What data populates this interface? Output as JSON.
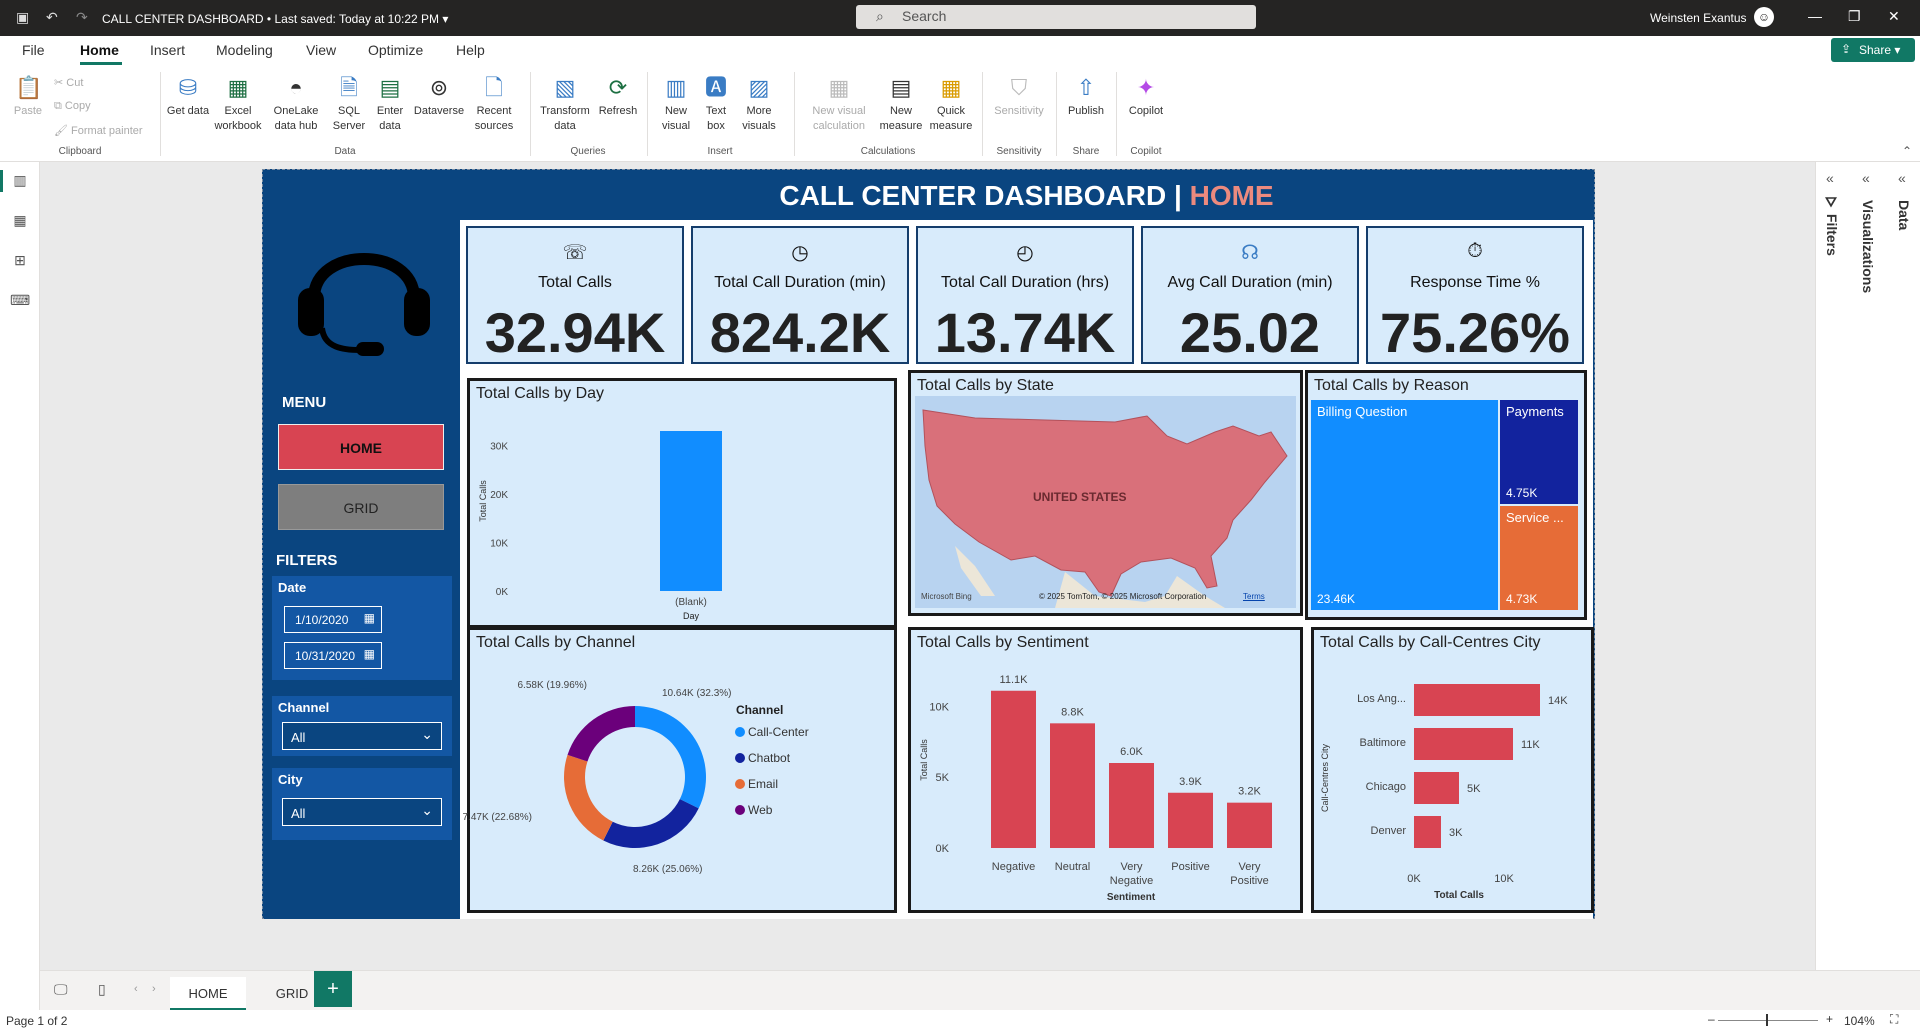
{
  "titlebar": {
    "doc_title": "CALL CENTER DASHBOARD",
    "saved": "Last saved: Today at 10:22 PM",
    "search_placeholder": "Search",
    "user_name": "Weinsten Exantus"
  },
  "menu": {
    "items": [
      "File",
      "Home",
      "Insert",
      "Modeling",
      "View",
      "Optimize",
      "Help"
    ],
    "active": "Home",
    "share_label": "Share"
  },
  "ribbon": {
    "clipboard": {
      "paste": "Paste",
      "cut": "Cut",
      "copy": "Copy",
      "format_painter": "Format painter",
      "group": "Clipboard"
    },
    "data": {
      "get_data": "Get data",
      "excel": "Excel workbook",
      "onelake": "OneLake data hub",
      "sql": "SQL Server",
      "enter_data": "Enter data",
      "dataverse": "Dataverse",
      "recent": "Recent sources",
      "group": "Data"
    },
    "queries": {
      "transform": "Transform data",
      "refresh": "Refresh",
      "group": "Queries"
    },
    "insert": {
      "new_visual": "New visual",
      "text_box": "Text box",
      "more_visuals": "More visuals",
      "group": "Insert"
    },
    "calculations": {
      "new_visual_calc": "New visual calculation",
      "new_measure": "New measure",
      "quick_measure": "Quick measure",
      "group": "Calculations"
    },
    "sensitivity": {
      "label": "Sensitivity",
      "group": "Sensitivity"
    },
    "share": {
      "publish": "Publish",
      "group": "Share"
    },
    "copilot": {
      "label": "Copilot",
      "group": "Copilot"
    }
  },
  "right_pane": {
    "filters": "Filters",
    "visualizations": "Visualizations",
    "data": "Data"
  },
  "report": {
    "title_main": "CALL CENTER DASHBOARD | ",
    "title_page": "HOME",
    "sidebar": {
      "menu_label": "MENU",
      "home_button": "HOME",
      "grid_button": "GRID",
      "filters_label": "FILTERS",
      "date_label": "Date",
      "date_start": "1/10/2020",
      "date_end": "10/31/2020",
      "channel_label": "Channel",
      "channel_value": "All",
      "city_label": "City",
      "city_value": "All"
    },
    "cards": [
      {
        "label": "Total Calls",
        "value": "32.94K",
        "icon": "phone-icon"
      },
      {
        "label": "Total Call Duration (min)",
        "value": "824.2K",
        "icon": "timer-60min-icon"
      },
      {
        "label": "Total Call Duration (hrs)",
        "value": "13.74K",
        "icon": "clock-24h-icon"
      },
      {
        "label": "Avg Call Duration (min)",
        "value": "25.02",
        "icon": "headset-icon"
      },
      {
        "label": "Response Time %",
        "value": "75.26%",
        "icon": "stopwatch-icon"
      }
    ],
    "map": {
      "title": "Total Calls by State",
      "label": "UNITED STATES",
      "logo": "Microsoft Bing",
      "copyright": "© 2025 TomTom, © 2025 Microsoft Corporation",
      "terms": "Terms"
    }
  },
  "chart_data": [
    {
      "type": "bar",
      "title": "Total Calls by Day",
      "categories": [
        "(Blank)"
      ],
      "values": [
        32940
      ],
      "xlabel": "Day",
      "ylabel": "Total Calls",
      "ylim": [
        0,
        35000
      ],
      "yticks": [
        "0K",
        "10K",
        "20K",
        "30K"
      ],
      "color": "#118dff"
    },
    {
      "type": "treemap",
      "title": "Total Calls by Reason",
      "categories": [
        "Billing Question",
        "Payments",
        "Service ..."
      ],
      "values": [
        23460,
        4750,
        4730
      ],
      "value_labels": [
        "23.46K",
        "4.75K",
        "4.73K"
      ],
      "colors": [
        "#118dff",
        "#12239e",
        "#e66c37"
      ]
    },
    {
      "type": "pie",
      "title": "Total Calls by Channel",
      "legend_title": "Channel",
      "categories": [
        "Call-Center",
        "Chatbot",
        "Email",
        "Web"
      ],
      "values": [
        10640,
        8260,
        7470,
        6580
      ],
      "value_labels": [
        "10.64K (32.3%)",
        "8.26K (25.06%)",
        "7.47K (22.68%)",
        "6.58K (19.96%)"
      ],
      "colors": [
        "#118dff",
        "#12239e",
        "#e66c37",
        "#6b007b"
      ]
    },
    {
      "type": "bar",
      "title": "Total Calls by Sentiment",
      "categories": [
        "Negative",
        "Neutral",
        "Very Negative",
        "Positive",
        "Very Positive"
      ],
      "values": [
        11100,
        8800,
        6000,
        3900,
        3200
      ],
      "value_labels": [
        "11.1K",
        "8.8K",
        "6.0K",
        "3.9K",
        "3.2K"
      ],
      "xlabel": "Sentiment",
      "ylabel": "Total Calls",
      "ylim": [
        0,
        12000
      ],
      "yticks": [
        "0K",
        "5K",
        "10K"
      ],
      "color": "#d84452"
    },
    {
      "type": "bar",
      "orientation": "horizontal",
      "title": "Total Calls by Call-Centres City",
      "categories": [
        "Los Ang...",
        "Baltimore",
        "Chicago",
        "Denver"
      ],
      "values": [
        14000,
        11000,
        5000,
        3000
      ],
      "value_labels": [
        "14K",
        "11K",
        "5K",
        "3K"
      ],
      "xlabel": "Total Calls",
      "ylabel": "Call-Centres City",
      "xticks": [
        "0K",
        "10K"
      ],
      "color": "#d84452"
    }
  ],
  "pages": {
    "tabs": [
      "HOME",
      "GRID"
    ],
    "active": "HOME"
  },
  "status": {
    "page": "Page 1 of 2",
    "zoom": "104%"
  }
}
